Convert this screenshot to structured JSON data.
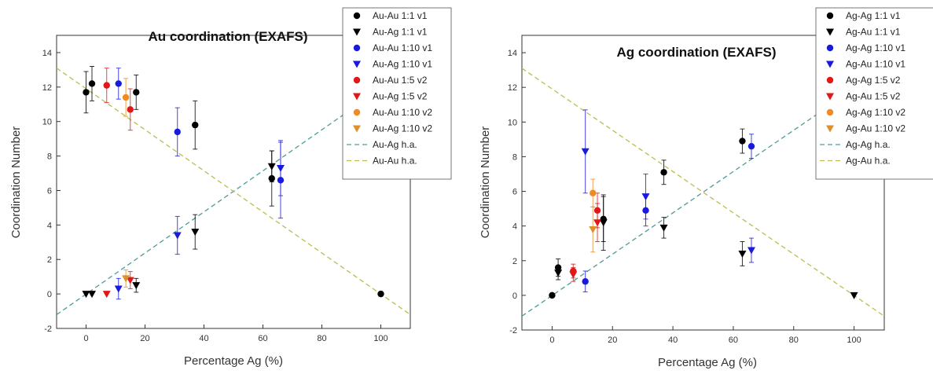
{
  "chart_data": [
    {
      "type": "scatter",
      "title": "Au coordination (EXAFS)",
      "xlabel": "Percentage Ag (%)",
      "ylabel": "Coordination Number",
      "xlim": [
        -10,
        110
      ],
      "ylim": [
        -2,
        15
      ],
      "xticks": [
        0,
        20,
        40,
        60,
        80,
        100
      ],
      "yticks": [
        -2,
        0,
        2,
        4,
        6,
        8,
        10,
        12,
        14
      ],
      "legend_position": "top-right-outside",
      "series": [
        {
          "name": "Au-Au 1:1 v1",
          "marker": "circle",
          "color": "#000000",
          "points": [
            {
              "x": 0,
              "y": 11.7,
              "err": 1.2
            },
            {
              "x": 2,
              "y": 12.2,
              "err": 1.0
            },
            {
              "x": 17,
              "y": 11.7,
              "err": 1.0
            },
            {
              "x": 37,
              "y": 9.8,
              "err": 1.4
            },
            {
              "x": 63,
              "y": 6.7,
              "err": 1.6
            },
            {
              "x": 100,
              "y": 0.0,
              "err": 0
            }
          ]
        },
        {
          "name": "Au-Ag 1:1 v1",
          "marker": "triangle-down",
          "color": "#000000",
          "points": [
            {
              "x": 0,
              "y": 0.0,
              "err": 0
            },
            {
              "x": 2,
              "y": 0.0,
              "err": 0
            },
            {
              "x": 17,
              "y": 0.5,
              "err": 0.4
            },
            {
              "x": 37,
              "y": 3.6,
              "err": 1.0
            },
            {
              "x": 63,
              "y": 7.4,
              "err": 0.9
            }
          ]
        },
        {
          "name": "Au-Au 1:10 v1",
          "marker": "circle",
          "color": "#1a1adc",
          "points": [
            {
              "x": 11,
              "y": 12.2,
              "err": 0.9
            },
            {
              "x": 31,
              "y": 9.4,
              "err": 1.4
            },
            {
              "x": 66,
              "y": 6.6,
              "err": 2.2
            }
          ]
        },
        {
          "name": "Au-Ag 1:10 v1",
          "marker": "triangle-down",
          "color": "#1a1adc",
          "points": [
            {
              "x": 11,
              "y": 0.3,
              "err": 0.6
            },
            {
              "x": 31,
              "y": 3.4,
              "err": 1.1
            },
            {
              "x": 66,
              "y": 7.3,
              "err": 1.6
            }
          ]
        },
        {
          "name": "Au-Au 1:5 v2",
          "marker": "circle",
          "color": "#e01818",
          "points": [
            {
              "x": 7,
              "y": 12.1,
              "err": 1.0
            },
            {
              "x": 15,
              "y": 10.7,
              "err": 1.2
            }
          ]
        },
        {
          "name": "Au-Ag 1:5 v2",
          "marker": "triangle-down",
          "color": "#e01818",
          "points": [
            {
              "x": 7,
              "y": 0.0,
              "err": 0
            },
            {
              "x": 15,
              "y": 0.8,
              "err": 0.5
            }
          ]
        },
        {
          "name": "Au-Au 1:10 v2",
          "marker": "circle",
          "color": "#f08a22",
          "points": [
            {
              "x": 13.5,
              "y": 11.4,
              "err": 1.1
            }
          ]
        },
        {
          "name": "Au-Ag 1:10 v2",
          "marker": "triangle-down",
          "color": "#e0902a",
          "points": [
            {
              "x": 13.5,
              "y": 0.9,
              "err": 0.5
            }
          ]
        }
      ],
      "lines": [
        {
          "name": "Au-Ag h.a.",
          "color": "#4f9a9a",
          "from": [
            -10,
            -1.2
          ],
          "to": [
            110,
            13.1
          ]
        },
        {
          "name": "Au-Au h.a.",
          "color": "#bcbc50",
          "from": [
            -10,
            13.1
          ],
          "to": [
            110,
            -1.2
          ]
        }
      ]
    },
    {
      "type": "scatter",
      "title": "Ag coordination (EXAFS)",
      "xlabel": "Percentage Ag (%)",
      "ylabel": "Coordination Number",
      "xlim": [
        -10,
        110
      ],
      "ylim": [
        -2,
        15
      ],
      "xticks": [
        0,
        20,
        40,
        60,
        80,
        100
      ],
      "yticks": [
        -2,
        0,
        2,
        4,
        6,
        8,
        10,
        12,
        14
      ],
      "legend_position": "top-right-outside",
      "series": [
        {
          "name": "Ag-Ag 1:1 v1",
          "marker": "circle",
          "color": "#000000",
          "points": [
            {
              "x": 0,
              "y": 0.0,
              "err": 0
            },
            {
              "x": 2,
              "y": 1.6,
              "err": 0.5
            },
            {
              "x": 17,
              "y": 4.4,
              "err": 1.3
            },
            {
              "x": 37,
              "y": 7.1,
              "err": 0.7
            },
            {
              "x": 63,
              "y": 8.9,
              "err": 0.7
            }
          ]
        },
        {
          "name": "Ag-Au 1:1 v1",
          "marker": "triangle-down",
          "color": "#000000",
          "points": [
            {
              "x": 2,
              "y": 1.3,
              "err": 0.4
            },
            {
              "x": 17,
              "y": 4.2,
              "err": 1.6
            },
            {
              "x": 37,
              "y": 3.9,
              "err": 0.6
            },
            {
              "x": 63,
              "y": 2.4,
              "err": 0.7
            },
            {
              "x": 100,
              "y": 0.0,
              "err": 0
            }
          ]
        },
        {
          "name": "Ag-Ag 1:10 v1",
          "marker": "circle",
          "color": "#1a1adc",
          "points": [
            {
              "x": 11,
              "y": 0.8,
              "err": 0.6
            },
            {
              "x": 31,
              "y": 4.9,
              "err": 0.9
            },
            {
              "x": 66,
              "y": 8.6,
              "err": 0.7
            }
          ]
        },
        {
          "name": "Ag-Au 1:10 v1",
          "marker": "triangle-down",
          "color": "#1a1adc",
          "points": [
            {
              "x": 11,
              "y": 8.3,
              "err": 2.4
            },
            {
              "x": 31,
              "y": 5.7,
              "err": 1.3
            },
            {
              "x": 66,
              "y": 2.6,
              "err": 0.7
            }
          ]
        },
        {
          "name": "Ag-Ag 1:5 v2",
          "marker": "circle",
          "color": "#e01818",
          "points": [
            {
              "x": 7,
              "y": 1.4,
              "err": 0.4
            },
            {
              "x": 15,
              "y": 4.9,
              "err": 1.0
            }
          ]
        },
        {
          "name": "Ag-Au 1:5 v2",
          "marker": "triangle-down",
          "color": "#e01818",
          "points": [
            {
              "x": 7,
              "y": 1.2,
              "err": 0.4
            },
            {
              "x": 15,
              "y": 4.2,
              "err": 1.1
            }
          ]
        },
        {
          "name": "Ag-Ag 1:10 v2",
          "marker": "circle",
          "color": "#f08a22",
          "points": [
            {
              "x": 13.5,
              "y": 5.9,
              "err": 0.8
            }
          ]
        },
        {
          "name": "Ag-Au 1:10 v2",
          "marker": "triangle-down",
          "color": "#e0902a",
          "points": [
            {
              "x": 13.5,
              "y": 3.8,
              "err": 1.3
            }
          ]
        }
      ],
      "lines": [
        {
          "name": "Ag-Ag h.a.",
          "color": "#4f9a9a",
          "from": [
            -10,
            -1.2
          ],
          "to": [
            110,
            13.1
          ]
        },
        {
          "name": "Ag-Au h.a.",
          "color": "#bcbc50",
          "from": [
            -10,
            13.1
          ],
          "to": [
            110,
            -1.2
          ]
        }
      ]
    }
  ]
}
